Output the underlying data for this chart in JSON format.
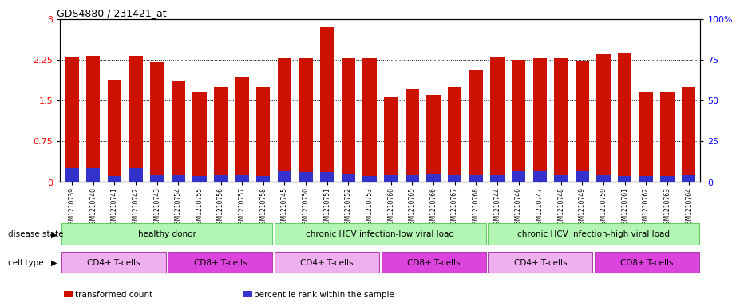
{
  "title": "GDS4880 / 231421_at",
  "samples": [
    "GSM1210739",
    "GSM1210740",
    "GSM1210741",
    "GSM1210742",
    "GSM1210743",
    "GSM1210754",
    "GSM1210755",
    "GSM1210756",
    "GSM1210757",
    "GSM1210758",
    "GSM1210745",
    "GSM1210750",
    "GSM1210751",
    "GSM1210752",
    "GSM1210753",
    "GSM1210760",
    "GSM1210765",
    "GSM1210766",
    "GSM1210767",
    "GSM1210768",
    "GSM1210744",
    "GSM1210746",
    "GSM1210747",
    "GSM1210748",
    "GSM1210749",
    "GSM1210759",
    "GSM1210761",
    "GSM1210762",
    "GSM1210763",
    "GSM1210764"
  ],
  "red_values": [
    2.3,
    2.32,
    1.87,
    2.32,
    2.2,
    1.85,
    1.65,
    1.75,
    1.92,
    1.75,
    2.28,
    2.28,
    2.85,
    2.28,
    2.28,
    1.55,
    1.7,
    1.6,
    1.75,
    2.05,
    2.3,
    2.25,
    2.28,
    2.27,
    2.22,
    2.35,
    2.38,
    1.65,
    1.65,
    1.75
  ],
  "blue_values": [
    0.25,
    0.25,
    0.1,
    0.25,
    0.12,
    0.12,
    0.1,
    0.12,
    0.12,
    0.1,
    0.2,
    0.18,
    0.18,
    0.15,
    0.1,
    0.12,
    0.12,
    0.15,
    0.12,
    0.12,
    0.12,
    0.2,
    0.2,
    0.12,
    0.2,
    0.12,
    0.1,
    0.1,
    0.1,
    0.12
  ],
  "ylim_left": [
    0,
    3
  ],
  "ylim_right": [
    0,
    100
  ],
  "yticks_left": [
    0,
    0.75,
    1.5,
    2.25,
    3
  ],
  "ytick_labels_left": [
    "0",
    "0.75",
    "1.5",
    "2.25",
    "3"
  ],
  "yticks_right": [
    0,
    25,
    50,
    75,
    100
  ],
  "ytick_labels_right": [
    "0",
    "25",
    "50",
    "75",
    "100%"
  ],
  "bar_color_red": "#cc1100",
  "bar_color_blue": "#3333cc",
  "bg_color": "#ffffff",
  "plot_bg": "#ffffff",
  "disease_spans": [
    {
      "label": "healthy donor",
      "start": 0,
      "end": 10
    },
    {
      "label": "chronic HCV infection-low viral load",
      "start": 10,
      "end": 20
    },
    {
      "label": "chronic HCV infection-high viral load",
      "start": 20,
      "end": 30
    }
  ],
  "disease_color": "#b3f5b3",
  "disease_border": "#66cc66",
  "cell_spans": [
    {
      "label": "CD4+ T-cells",
      "start": 0,
      "end": 5,
      "color": "#f0b0f0"
    },
    {
      "label": "CD8+ T-cells",
      "start": 5,
      "end": 10,
      "color": "#dd44dd"
    },
    {
      "label": "CD4+ T-cells",
      "start": 10,
      "end": 15,
      "color": "#f0b0f0"
    },
    {
      "label": "CD8+ T-cells",
      "start": 15,
      "end": 20,
      "color": "#dd44dd"
    },
    {
      "label": "CD4+ T-cells",
      "start": 20,
      "end": 25,
      "color": "#f0b0f0"
    },
    {
      "label": "CD8+ T-cells",
      "start": 25,
      "end": 30,
      "color": "#dd44dd"
    }
  ],
  "cell_border": "#aa44aa",
  "legend_items": [
    {
      "color": "#cc1100",
      "label": "transformed count"
    },
    {
      "color": "#3333cc",
      "label": "percentile rank within the sample"
    }
  ]
}
